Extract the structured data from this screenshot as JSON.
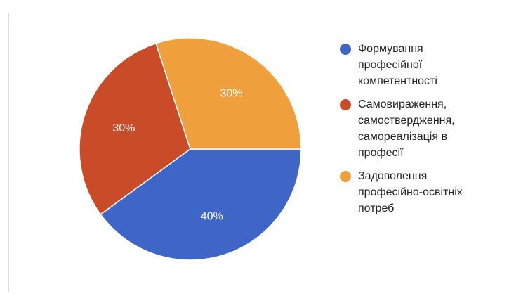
{
  "chart_data": {
    "type": "pie",
    "title": "",
    "start_angle_deg": 0,
    "direction": "clockwise",
    "series": [
      {
        "values": [
          40,
          30,
          30
        ],
        "labels": [
          "40%",
          "30%",
          "30%"
        ]
      }
    ],
    "legend": {
      "placement": "right",
      "entries": [
        "Формування професійної компетентності",
        "Самовираження, самоствердження, самореалізація в професії",
        "Задоволення професійно-освітніх потреб"
      ]
    },
    "colors": [
      "#3f65c7",
      "#c94b28",
      "#ef9f3b"
    ]
  }
}
